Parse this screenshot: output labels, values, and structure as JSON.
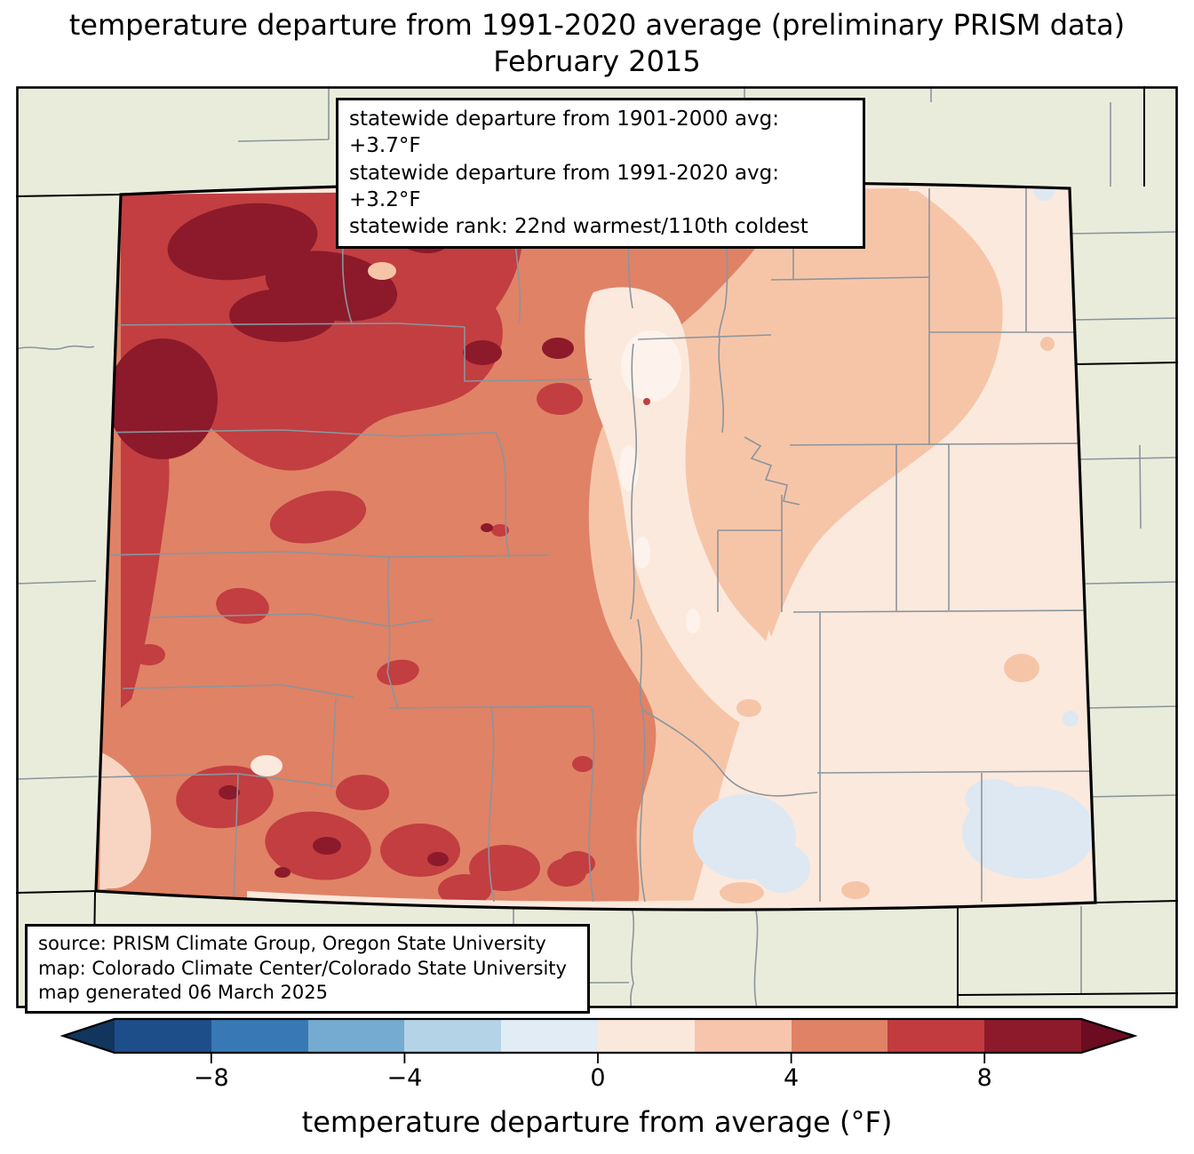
{
  "title": {
    "line1": "temperature departure from 1991-2020 average (preliminary PRISM data)",
    "line2": "February 2015"
  },
  "stats_box": {
    "line1": "statewide departure from 1901-2000 avg: +3.7°F",
    "line2": "statewide departure from 1991-2020 avg: +3.2°F",
    "line3": "statewide rank: 22nd warmest/110th coldest"
  },
  "source_box": {
    "line1": "source: PRISM Climate Group, Oregon State University",
    "line2": "map: Colorado Climate Center/Colorado State University",
    "line3": "map generated 06 March 2025"
  },
  "colorbar": {
    "label": "temperature departure from average (°F)",
    "ticks": [
      "−8",
      "−4",
      "0",
      "4",
      "8"
    ],
    "segment_colors": [
      "#1d4e89",
      "#3879b5",
      "#75abd0",
      "#b4d3e6",
      "#e1ecf5",
      "#fbe8dc",
      "#f7c5ab",
      "#e08265",
      "#c23b3e",
      "#8c1a2a"
    ],
    "left_arrow_color": "#12355e",
    "right_arrow_color": "#6b0c20"
  }
}
